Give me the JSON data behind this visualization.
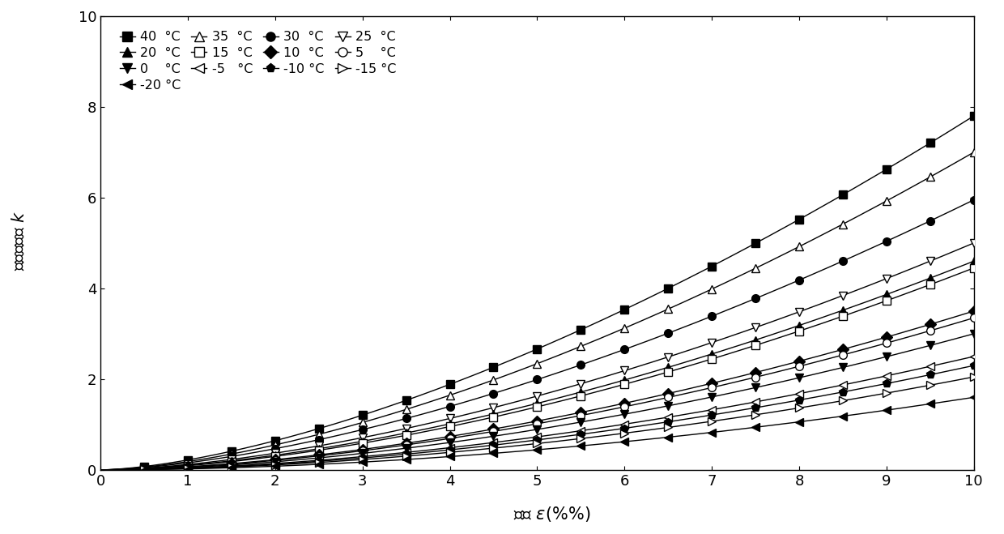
{
  "title": "",
  "xlim": [
    0,
    10
  ],
  "ylim": [
    0,
    10
  ],
  "xticks": [
    0,
    1,
    2,
    3,
    4,
    5,
    6,
    7,
    8,
    9,
    10
  ],
  "yticks": [
    0,
    2,
    4,
    6,
    8,
    10
  ],
  "background_color": "#ffffff",
  "series": [
    {
      "temp": 40,
      "marker": "s",
      "filled": true,
      "final_k": 7.8,
      "b": 1.55
    },
    {
      "temp": 35,
      "marker": "^",
      "filled": false,
      "final_k": 7.0,
      "b": 1.58
    },
    {
      "temp": 30,
      "marker": "o",
      "filled": true,
      "final_k": 5.95,
      "b": 1.58
    },
    {
      "temp": 25,
      "marker": "v",
      "filled": false,
      "final_k": 5.0,
      "b": 1.62
    },
    {
      "temp": 20,
      "marker": "^",
      "filled": true,
      "final_k": 4.6,
      "b": 1.65
    },
    {
      "temp": 15,
      "marker": "s",
      "filled": false,
      "final_k": 4.45,
      "b": 1.68
    },
    {
      "temp": 10,
      "marker": "D",
      "filled": true,
      "final_k": 3.5,
      "b": 1.7
    },
    {
      "temp": 5,
      "marker": "o",
      "filled": false,
      "final_k": 3.35,
      "b": 1.72
    },
    {
      "temp": 0,
      "marker": "v",
      "filled": true,
      "final_k": 3.0,
      "b": 1.75
    },
    {
      "temp": -5,
      "marker": "<",
      "filled": false,
      "final_k": 2.5,
      "b": 1.78
    },
    {
      "temp": -10,
      "marker": "p",
      "filled": true,
      "final_k": 2.3,
      "b": 1.8
    },
    {
      "temp": -15,
      "marker": ">",
      "filled": false,
      "final_k": 2.05,
      "b": 1.82
    },
    {
      "temp": -20,
      "marker": "<",
      "filled": true,
      "final_k": 1.6,
      "b": 1.85
    }
  ],
  "legend_rows": [
    [
      {
        "marker": "s",
        "filled": true,
        "label": "40  °C"
      },
      {
        "marker": "^",
        "filled": true,
        "label": "20  °C"
      },
      {
        "marker": "v",
        "filled": true,
        "label": "0    °C"
      },
      {
        "marker": "<",
        "filled": true,
        "label": "-20 °C"
      }
    ],
    [
      {
        "marker": "^",
        "filled": false,
        "label": "35  °C"
      },
      {
        "marker": "s",
        "filled": false,
        "label": "15  °C"
      },
      {
        "marker": "<",
        "filled": false,
        "label": "-5   °C"
      },
      {
        "marker": "dummy",
        "filled": false,
        "label": ""
      }
    ],
    [
      {
        "marker": "o",
        "filled": true,
        "label": "30  °C"
      },
      {
        "marker": "D",
        "filled": true,
        "label": "10  °C"
      },
      {
        "marker": "p",
        "filled": true,
        "label": "-10 °C"
      },
      {
        "marker": "dummy",
        "filled": false,
        "label": ""
      }
    ],
    [
      {
        "marker": "v",
        "filled": false,
        "label": "25  °C"
      },
      {
        "marker": "o",
        "filled": false,
        "label": "5    °C"
      },
      {
        "marker": ">",
        "filled": false,
        "label": "-15 °C"
      },
      {
        "marker": "dummy",
        "filled": false,
        "label": ""
      }
    ]
  ]
}
